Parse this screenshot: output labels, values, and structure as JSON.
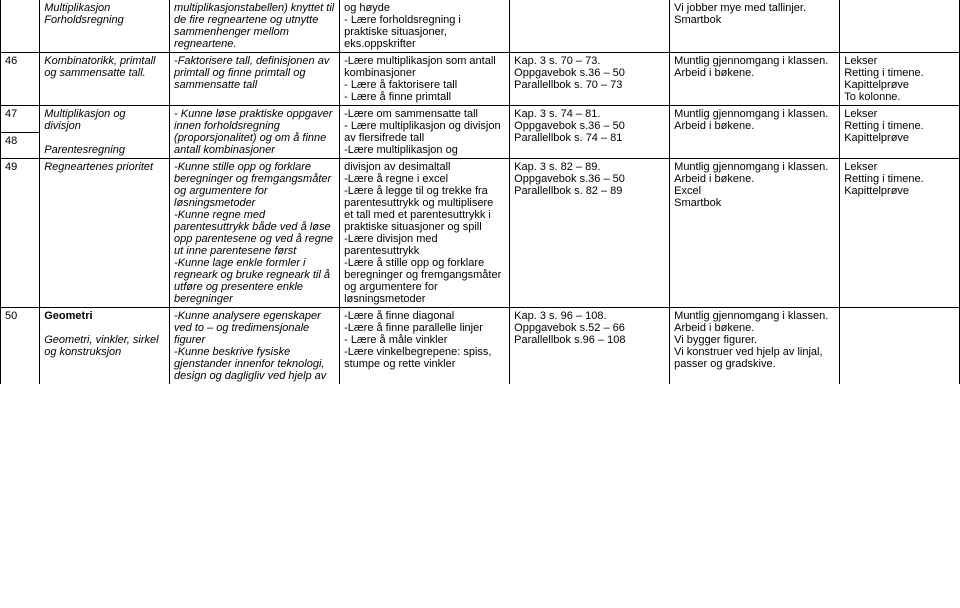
{
  "rows": [
    {
      "wk": "",
      "topic": "Multiplikasjon Forholdsregning",
      "c3": "multiplikasjonstabellen) knyttet til de fire regneartene og utnytte sammenhenger mellom regneartene.",
      "c4": "og høyde\n- Lære forholdsregning i praktiske situasjoner, eks.oppskrifter",
      "c5": "",
      "c6": "Vi jobber mye med tallinjer.\nSmartbok",
      "c7": ""
    },
    {
      "wk": "46",
      "topic": "Kombinatorikk, primtall og sammensatte tall.",
      "c3": "-Faktorisere tall, definisjonen av primtall og finne primtall og sammensatte tall",
      "c4": "-Lære multiplikasjon som antall kombinasjoner\n- Lære å faktorisere tall\n- Lære å finne primtall",
      "c5": "Kap. 3 s. 70 – 73.\nOppgavebok s.36 – 50\nParallellbok s. 70 – 73",
      "c6": "Muntlig gjennomgang i klassen.\nArbeid i bøkene.",
      "c7": "Lekser\nRetting i timene.\nKapittelprøve\nTo kolonne."
    },
    {
      "wk": "47",
      "topic": "Multiplikasjon og divisjon",
      "c3": "- Kunne løse praktiske oppgaver innen forholdsregning (proporsjonalitet) og om å finne antall kombinasjoner",
      "c4": "-Lære om sammensatte tall\n- Lære multiplikasjon og divisjon av flersifrede tall\n-Lære multiplikasjon og",
      "c5": "Kap. 3 s. 74 – 81.\nOppgavebok s.36 – 50\nParallellbok s. 74 – 81",
      "c6": "Muntlig gjennomgang i klassen.\nArbeid i bøkene.",
      "c7": "Lekser\nRetting i timene.\nKapittelprøve"
    },
    {
      "wk": "48",
      "topic": "Parentesregning",
      "c3": "",
      "c4": "",
      "c5": "",
      "c6": "",
      "c7": ""
    },
    {
      "wk": "49",
      "topic": "Regneartenes prioritet",
      "c3": "-Kunne stille opp og forklare beregninger og fremgangsmåter og argumentere for løsningsmetoder\n-Kunne regne med parentesuttrykk både ved å løse opp parentesene og ved å regne ut inne parentesene først\n-Kunne lage enkle formler i regneark og bruke regneark til å utføre og presentere enkle beregninger",
      "c4": "divisjon av desimaltall\n-Lære å regne i excel\n-Lære å legge til og trekke fra parentesuttrykk og multiplisere et tall med et parentesuttrykk i praktiske situasjoner og spill\n-Lære divisjon med parentesuttrykk\n-Lære å stille opp og forklare beregninger og fremgangsmåter og argumentere for løsningsmetoder",
      "c5": "Kap. 3 s. 82 – 89.\nOppgavebok s.36 – 50\nParallellbok s. 82 – 89",
      "c6": "Muntlig gjennomgang i klassen.\nArbeid i bøkene.\nExcel\nSmartbok",
      "c7": "Lekser\nRetting i timene.\nKapittelprøve"
    },
    {
      "wk": "50",
      "topic": "Geometri\n\nGeometri, vinkler, sirkel og konstruksjon",
      "c3": "-Kunne analysere egenskaper ved to – og tredimensjonale figurer\n-Kunne beskrive fysiske gjenstander innenfor teknologi, design og dagligliv ved hjelp av",
      "c4": "-Lære å finne diagonal\n-Lære å finne parallelle linjer\n- Lære å måle vinkler\n-Lære vinkelbegrepene: spiss, stumpe og rette vinkler",
      "c5": "Kap. 3 s. 96 – 108.\nOppgavebok s.52 – 66\nParallellbok s.96 – 108",
      "c6": "Muntlig gjennomgang i klassen.\nArbeid i bøkene.\nVi bygger figurer.\nVi konstruer ved hjelp av linjal, passer og gradskive.",
      "c7": ""
    }
  ]
}
